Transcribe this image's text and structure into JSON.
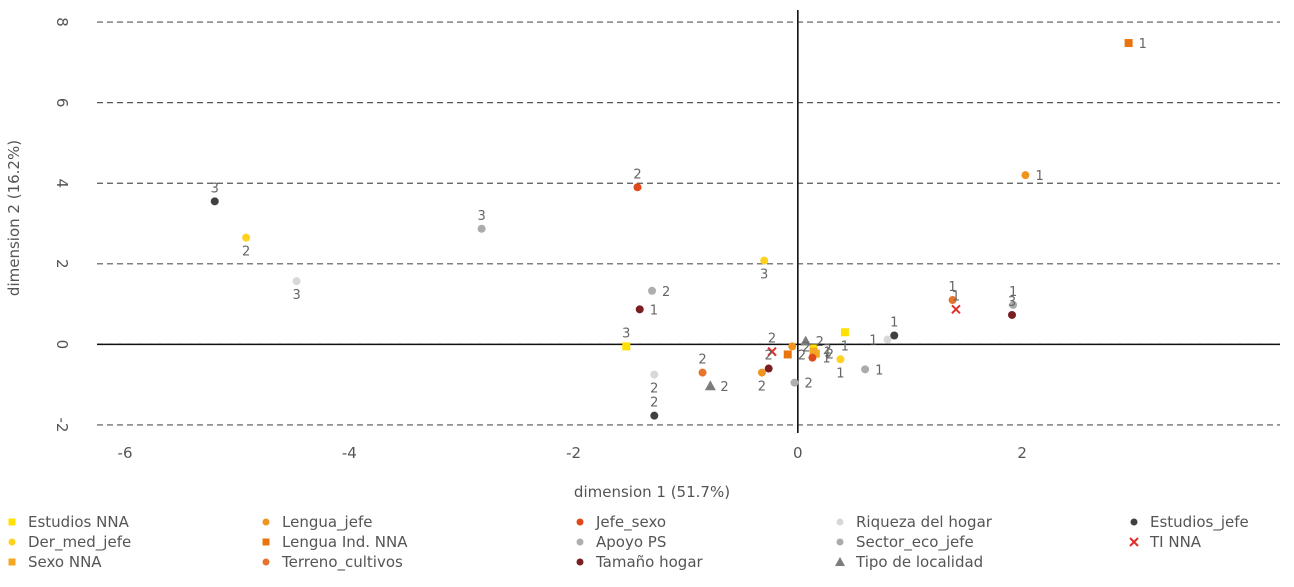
{
  "chart_data": {
    "type": "scatter",
    "xlabel": "dimension 1 (51.7%)",
    "ylabel": "dimension 2 (16.2%)",
    "xlim": [
      -6.25,
      4.3
    ],
    "ylim": [
      -2.2,
      8.3
    ],
    "xticks": [
      -6,
      -4,
      -2,
      0,
      2
    ],
    "yticks": [
      -2,
      0,
      2,
      4,
      6,
      8
    ],
    "grid": "horizontal dashed",
    "legend_position": "bottom",
    "series": [
      {
        "name": "Estudios NNA",
        "color": "#FFE000",
        "marker": "square",
        "points": [
          {
            "x": -1.53,
            "y": -0.05,
            "label": "3"
          },
          {
            "x": 0.42,
            "y": 0.3,
            "label": "1"
          },
          {
            "x": 0.14,
            "y": -0.1,
            "label": "2"
          }
        ]
      },
      {
        "name": "Der_med_jefe",
        "color": "#FFD21F",
        "marker": "circle",
        "points": [
          {
            "x": -4.92,
            "y": 2.65,
            "label": "2"
          },
          {
            "x": -0.3,
            "y": 2.08,
            "label": "3"
          },
          {
            "x": 0.38,
            "y": -0.37,
            "label": "1"
          }
        ]
      },
      {
        "name": "Sexo NNA",
        "color": "#F5A623",
        "marker": "square",
        "points": [
          {
            "x": 0.14,
            "y": -0.18,
            "label": "1"
          },
          {
            "x": 0.16,
            "y": -0.23,
            "label": "2"
          }
        ]
      },
      {
        "name": "Lengua_jefe",
        "color": "#F0941F",
        "marker": "circle",
        "points": [
          {
            "x": 2.03,
            "y": 4.2,
            "label": "1"
          },
          {
            "x": -0.05,
            "y": -0.05,
            "label": "2"
          },
          {
            "x": -0.32,
            "y": -0.7,
            "label": "2"
          }
        ]
      },
      {
        "name": "Lengua Ind. NNA",
        "color": "#E8740F",
        "marker": "square",
        "points": [
          {
            "x": 2.95,
            "y": 7.48,
            "label": "1"
          },
          {
            "x": -0.09,
            "y": -0.25,
            "label": "2"
          }
        ]
      },
      {
        "name": "Terreno_cultivos",
        "color": "#E8732A",
        "marker": "circle",
        "points": [
          {
            "x": 1.38,
            "y": 1.1,
            "label": "1"
          },
          {
            "x": -0.85,
            "y": -0.7,
            "label": "2"
          }
        ]
      },
      {
        "name": "Jefe_sexo",
        "color": "#E04A1A",
        "marker": "circle",
        "points": [
          {
            "x": -1.43,
            "y": 3.9,
            "label": "2"
          },
          {
            "x": 0.13,
            "y": -0.33,
            "label": "1"
          }
        ]
      },
      {
        "name": "Apoyo PS",
        "color": "#AEAEAE",
        "marker": "circle",
        "points": [
          {
            "x": -1.3,
            "y": 1.33,
            "label": "2"
          },
          {
            "x": -0.03,
            "y": -0.95,
            "label": "2"
          }
        ]
      },
      {
        "name": "Tamaño hogar",
        "color": "#7A1E22",
        "marker": "circle",
        "points": [
          {
            "x": -1.41,
            "y": 0.87,
            "label": "1"
          },
          {
            "x": 1.91,
            "y": 0.73,
            "label": "3"
          },
          {
            "x": -0.26,
            "y": -0.6,
            "label": "2"
          }
        ]
      },
      {
        "name": "Riqueza del hogar",
        "color": "#D8D8D8",
        "marker": "circle",
        "points": [
          {
            "x": -4.47,
            "y": 1.57,
            "label": "3"
          },
          {
            "x": -1.28,
            "y": -0.75,
            "label": "2"
          },
          {
            "x": 0.8,
            "y": 0.12,
            "label": "1"
          }
        ]
      },
      {
        "name": "Sector_eco_jefe",
        "color": "#ABABAB",
        "marker": "circle",
        "points": [
          {
            "x": -2.82,
            "y": 2.87,
            "label": "3"
          },
          {
            "x": 0.6,
            "y": -0.62,
            "label": "1"
          },
          {
            "x": 1.92,
            "y": 0.98,
            "label": "1"
          }
        ]
      },
      {
        "name": "Tipo de localidad",
        "color": "#7D7D7D",
        "marker": "triangle",
        "points": [
          {
            "x": -0.78,
            "y": -1.03,
            "label": "2"
          },
          {
            "x": 0.07,
            "y": 0.08,
            "label": "2"
          }
        ]
      },
      {
        "name": "Estudios_jefe",
        "color": "#404040",
        "marker": "circle",
        "points": [
          {
            "x": -5.2,
            "y": 3.55,
            "label": "3"
          },
          {
            "x": 0.86,
            "y": 0.22,
            "label": "1"
          },
          {
            "x": -1.28,
            "y": -1.77,
            "label": "2"
          }
        ]
      },
      {
        "name": "TI NNA",
        "color": "#E0302A",
        "marker": "x",
        "points": [
          {
            "x": 1.41,
            "y": 0.87,
            "label": "1"
          },
          {
            "x": -0.23,
            "y": -0.18,
            "label": "2"
          }
        ]
      }
    ]
  },
  "legend_order": [
    [
      "Estudios NNA",
      "Lengua_jefe",
      "Jefe_sexo",
      "Riqueza del hogar",
      "Estudios_jefe"
    ],
    [
      "Der_med_jefe",
      "Lengua Ind. NNA",
      "Apoyo PS",
      "Sector_eco_jefe",
      "TI NNA"
    ],
    [
      "Sexo NNA",
      "Terreno_cultivos",
      "Tamaño hogar",
      "Tipo de localidad"
    ]
  ]
}
